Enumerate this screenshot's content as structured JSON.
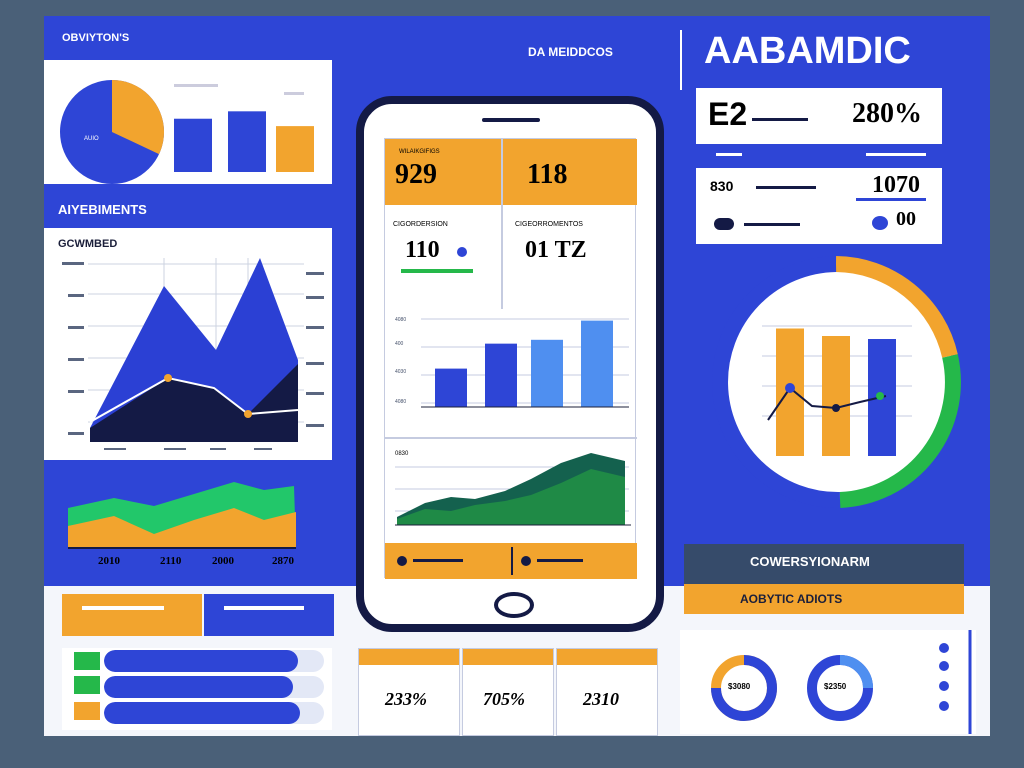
{
  "colors": {
    "backdrop": "#4a6078",
    "board_blue": "#2e45d6",
    "panel_white": "#ffffff",
    "orange": "#f2a42e",
    "navy": "#141a45",
    "green": "#25b84a",
    "teal_dark": "#14614e",
    "light_blue": "#4f8ff0"
  },
  "header": {
    "left_title": "OBVIYTON'S",
    "center_title": "DA MEIDDCOS",
    "brand_title": "AABAMDIC"
  },
  "top_left_panel": {
    "pie_label": "AUIO",
    "pie_share": 0.32,
    "bars": [
      0.72,
      0.82,
      0.62
    ]
  },
  "left_section": {
    "section_title": "AIYEBIMENTS",
    "chart_title": "GCWMBED",
    "area_years": [
      "2010",
      "2110",
      "2000",
      "2870"
    ]
  },
  "phone": {
    "kpi_1_value": "929",
    "kpi_1_label": "WILAIKGIFIGS",
    "kpi_2_value": "118",
    "kpi_3_label": "CIGORDERSION",
    "kpi_3_value": "110",
    "kpi_4_label": "CIGEORROMENTOS",
    "kpi_4_value": "01 TZ",
    "bar_values": [
      0.4,
      0.66,
      0.7,
      0.9
    ],
    "bar_ylabels": [
      "4080",
      "400",
      "4030",
      "4080"
    ],
    "area_title": "0830"
  },
  "right_stats": {
    "row_1_label": "E2",
    "row_1_value": "280%",
    "row_2_label": "830",
    "row_2_value": "1070",
    "row_3_value": "00"
  },
  "circle_chart": {
    "bar_values": [
      0.85,
      0.8,
      0.78
    ]
  },
  "bottom_right": {
    "box_title": "COWERSYIONARM",
    "box_subtitle": "AOBYTIC ADIOTS",
    "donut_1_label": "$3080",
    "donut_2_label": "$2350"
  },
  "bottom_cards": [
    {
      "value": "233%"
    },
    {
      "value": "705%"
    },
    {
      "value": "2310"
    }
  ],
  "progress_bars": [
    0.88,
    0.86,
    0.89
  ]
}
